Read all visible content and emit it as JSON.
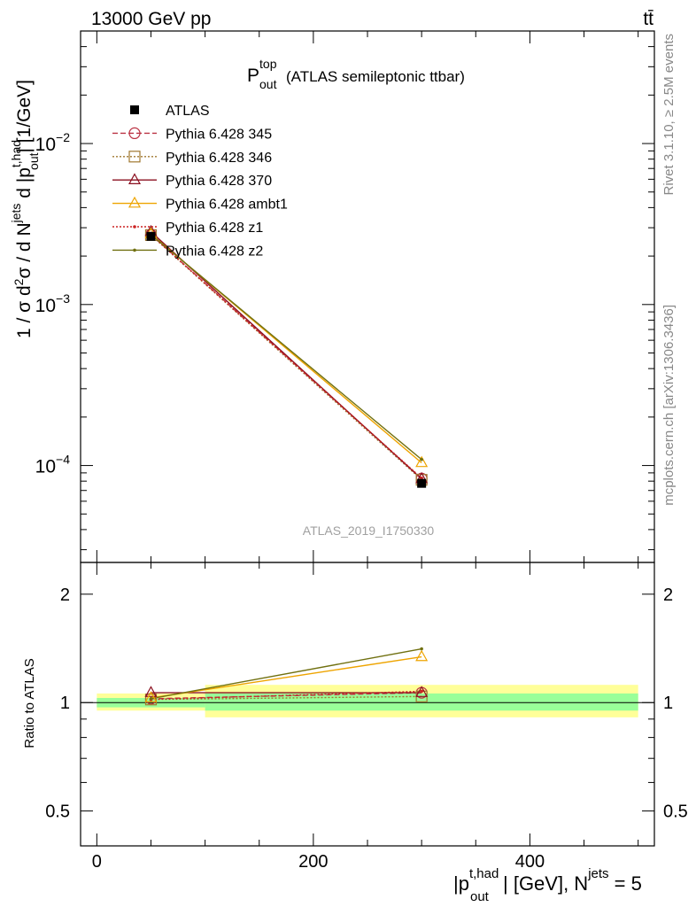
{
  "header": {
    "left": "13000 GeV pp",
    "right": "tt̄"
  },
  "side_text": {
    "rivet": "Rivet 3.1.10, ≥ 2.5M events",
    "mcplots": "mcplots.cern.ch [arXiv:1306.3436]"
  },
  "chart_data": [
    {
      "type": "line",
      "title": "P_out^top (ATLAS semileptonic ttbar)",
      "title_parts": {
        "main": "P",
        "sup": "top",
        "sub": "out",
        "rest": "(ATLAS semileptonic ttbar)"
      },
      "watermark": "ATLAS_2019_I1750330",
      "ylabel": "1 / σ d²σ / d N^jets d |p_out^t,had| [1/GeV]",
      "yscale": "log",
      "ylim": [
        2.5e-05,
        0.05
      ],
      "yticks_major": [
        {
          "v": 0.0001,
          "base": "10",
          "exp": "−4"
        },
        {
          "v": 0.001,
          "base": "10",
          "exp": "−3"
        },
        {
          "v": 0.01,
          "base": "10",
          "exp": "−2"
        }
      ],
      "xlim": [
        -15,
        515
      ],
      "legend_position": "top-left",
      "x": [
        50,
        300
      ],
      "series": [
        {
          "name": "ATLAS",
          "color": "#000000",
          "marker": "square",
          "dash": "none",
          "values": [
            0.00265,
            7.75e-05
          ],
          "errors": [
            1e-05,
            2e-06
          ]
        },
        {
          "name": "Pythia 6.428 345",
          "color": "#bb3344",
          "marker": "circle-open",
          "dash": "dashed",
          "values": [
            0.00272,
            8.3e-05
          ]
        },
        {
          "name": "Pythia 6.428 346",
          "color": "#a07830",
          "marker": "square-open",
          "dash": "dotted",
          "values": [
            0.0027,
            8.15e-05
          ]
        },
        {
          "name": "Pythia 6.428 370",
          "color": "#8b1020",
          "marker": "triangle-open",
          "dash": "solid",
          "values": [
            0.00283,
            8.25e-05
          ]
        },
        {
          "name": "Pythia 6.428 ambt1",
          "color": "#eea400",
          "marker": "triangle-open",
          "dash": "solid",
          "values": [
            0.00274,
            0.000104
          ]
        },
        {
          "name": "Pythia 6.428 z1",
          "color": "#cc2222",
          "marker": "dot",
          "dash": "dotted",
          "values": [
            0.00271,
            8.35e-05
          ]
        },
        {
          "name": "Pythia 6.428 z2",
          "color": "#707010",
          "marker": "dot",
          "dash": "solid",
          "values": [
            0.00272,
            0.000109
          ]
        }
      ]
    },
    {
      "type": "line",
      "ylabel": "Ratio to ATLAS",
      "xlabel": "|p_out^t,had| [GeV], N^jets = 5",
      "xlabel_parts": {
        "p": "|p",
        "sup": "t,had",
        "sub": "out",
        "mid": "| [GeV], N",
        "sup2": "jets",
        "end": " = 5"
      },
      "yscale": "log",
      "ylim": [
        0.4,
        2.45
      ],
      "yticks_major": [
        {
          "v": 0.5,
          "label": "0.5"
        },
        {
          "v": 1,
          "label": "1"
        },
        {
          "v": 2,
          "label": "2"
        }
      ],
      "xlim": [
        -15,
        515
      ],
      "xticks": [
        {
          "v": 0,
          "label": "0"
        },
        {
          "v": 200,
          "label": "200"
        },
        {
          "v": 400,
          "label": "400"
        }
      ],
      "bands": [
        {
          "x0": 0,
          "x1": 100,
          "green": [
            0.97,
            1.03
          ],
          "yellow": [
            0.95,
            1.06
          ]
        },
        {
          "x0": 100,
          "x1": 500,
          "green": [
            0.95,
            1.06
          ],
          "yellow": [
            0.91,
            1.12
          ]
        }
      ],
      "x": [
        50,
        300
      ],
      "series": [
        {
          "name": "Pythia 6.428 345",
          "values": [
            1.025,
            1.065
          ]
        },
        {
          "name": "Pythia 6.428 346",
          "values": [
            1.02,
            1.04
          ]
        },
        {
          "name": "Pythia 6.428 370",
          "values": [
            1.065,
            1.065
          ]
        },
        {
          "name": "Pythia 6.428 ambt1",
          "values": [
            1.03,
            1.34
          ]
        },
        {
          "name": "Pythia 6.428 z1",
          "values": [
            1.02,
            1.075
          ]
        },
        {
          "name": "Pythia 6.428 z2",
          "values": [
            1.025,
            1.41
          ]
        }
      ]
    }
  ]
}
